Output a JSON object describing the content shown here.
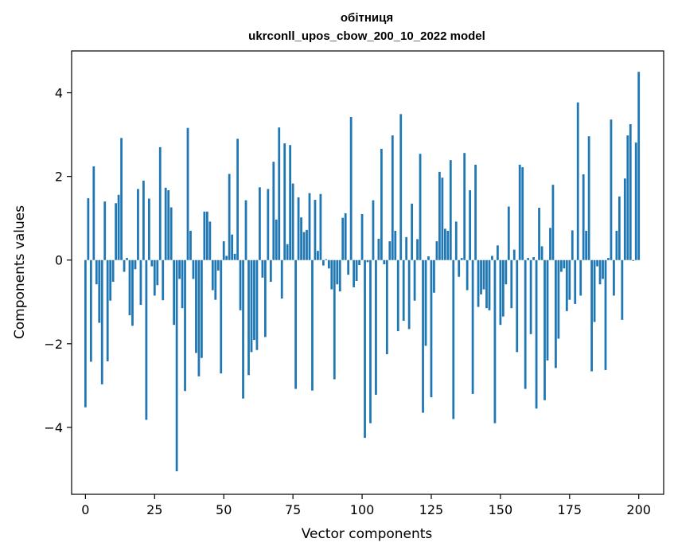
{
  "chart_data": {
    "type": "bar",
    "title": "обітниця",
    "subtitle": "ukrconll_upos_cbow_200_10_2022 model",
    "xlabel": "Vector components",
    "ylabel": "Components values",
    "bar_color": "#1f77b4",
    "xlim": [
      -5,
      209
    ],
    "ylim": [
      -5.6,
      5.0
    ],
    "xticks": [
      0,
      25,
      50,
      75,
      100,
      125,
      150,
      175,
      200
    ],
    "xtick_labels": [
      "0",
      "25",
      "50",
      "75",
      "100",
      "125",
      "150",
      "175",
      "200"
    ],
    "yticks": [
      -4,
      -2,
      0,
      2,
      4
    ],
    "ytick_labels": [
      "−4",
      "−2",
      "0",
      "2",
      "4"
    ],
    "grid": false,
    "x_start": 0,
    "values": [
      -3.52,
      1.48,
      -2.43,
      2.24,
      -0.58,
      -1.5,
      -2.97,
      1.4,
      -2.42,
      -0.97,
      -0.52,
      1.36,
      1.56,
      2.92,
      -0.28,
      0.05,
      -1.32,
      -1.57,
      -0.22,
      1.7,
      -1.07,
      1.9,
      -3.82,
      1.47,
      -0.15,
      -0.85,
      -0.6,
      2.7,
      -0.96,
      1.73,
      1.67,
      1.26,
      -1.55,
      -5.05,
      -0.45,
      -1.15,
      -3.13,
      3.16,
      0.7,
      -0.45,
      -2.22,
      -2.78,
      -2.34,
      1.16,
      1.16,
      0.92,
      -0.72,
      -0.95,
      -0.25,
      -2.71,
      0.45,
      0.1,
      2.06,
      0.61,
      0.15,
      2.9,
      -1.2,
      -3.31,
      1.43,
      -2.75,
      -2.2,
      -1.91,
      -2.15,
      1.74,
      -0.42,
      -1.84,
      1.7,
      -0.52,
      2.35,
      0.97,
      3.17,
      -0.92,
      2.79,
      0.38,
      2.75,
      1.83,
      -3.08,
      1.5,
      1.02,
      0.67,
      0.72,
      1.6,
      -3.12,
      1.44,
      0.22,
      1.58,
      -0.13,
      0.02,
      -0.2,
      -0.7,
      -2.85,
      -0.58,
      -0.75,
      1.01,
      1.12,
      -0.35,
      3.42,
      -0.65,
      -0.5,
      -0.12,
      1.1,
      -4.25,
      -0.05,
      -3.9,
      1.43,
      -3.22,
      0.51,
      2.66,
      -0.1,
      -2.25,
      0.45,
      2.98,
      0.7,
      -1.7,
      3.49,
      -1.45,
      0.55,
      -1.65,
      1.35,
      -0.97,
      0.5,
      2.54,
      -3.65,
      -2.05,
      0.09,
      -3.28,
      -0.78,
      0.45,
      2.11,
      1.97,
      0.75,
      0.7,
      2.39,
      -3.8,
      0.92,
      -0.4,
      0.05,
      2.56,
      -0.72,
      1.67,
      -3.2,
      2.28,
      -1.12,
      -0.82,
      -0.7,
      -1.15,
      -1.2,
      0.1,
      -3.9,
      0.35,
      -1.55,
      -1.35,
      -0.58,
      1.28,
      -1.15,
      0.25,
      -2.2,
      2.28,
      2.22,
      -3.08,
      0.05,
      -1.77,
      0.07,
      -3.55,
      1.25,
      0.33,
      -3.35,
      -2.4,
      0.77,
      1.8,
      -2.58,
      -1.88,
      -0.28,
      -0.2,
      -1.22,
      -0.95,
      0.71,
      -1.05,
      3.77,
      -0.85,
      2.05,
      0.7,
      2.96,
      -2.66,
      -1.48,
      -0.15,
      -0.58,
      -0.45,
      -2.63,
      0.05,
      3.36,
      -0.85,
      0.7,
      1.52,
      -1.43,
      1.95,
      2.98,
      3.25,
      -0.02,
      2.81,
      4.5
    ]
  }
}
